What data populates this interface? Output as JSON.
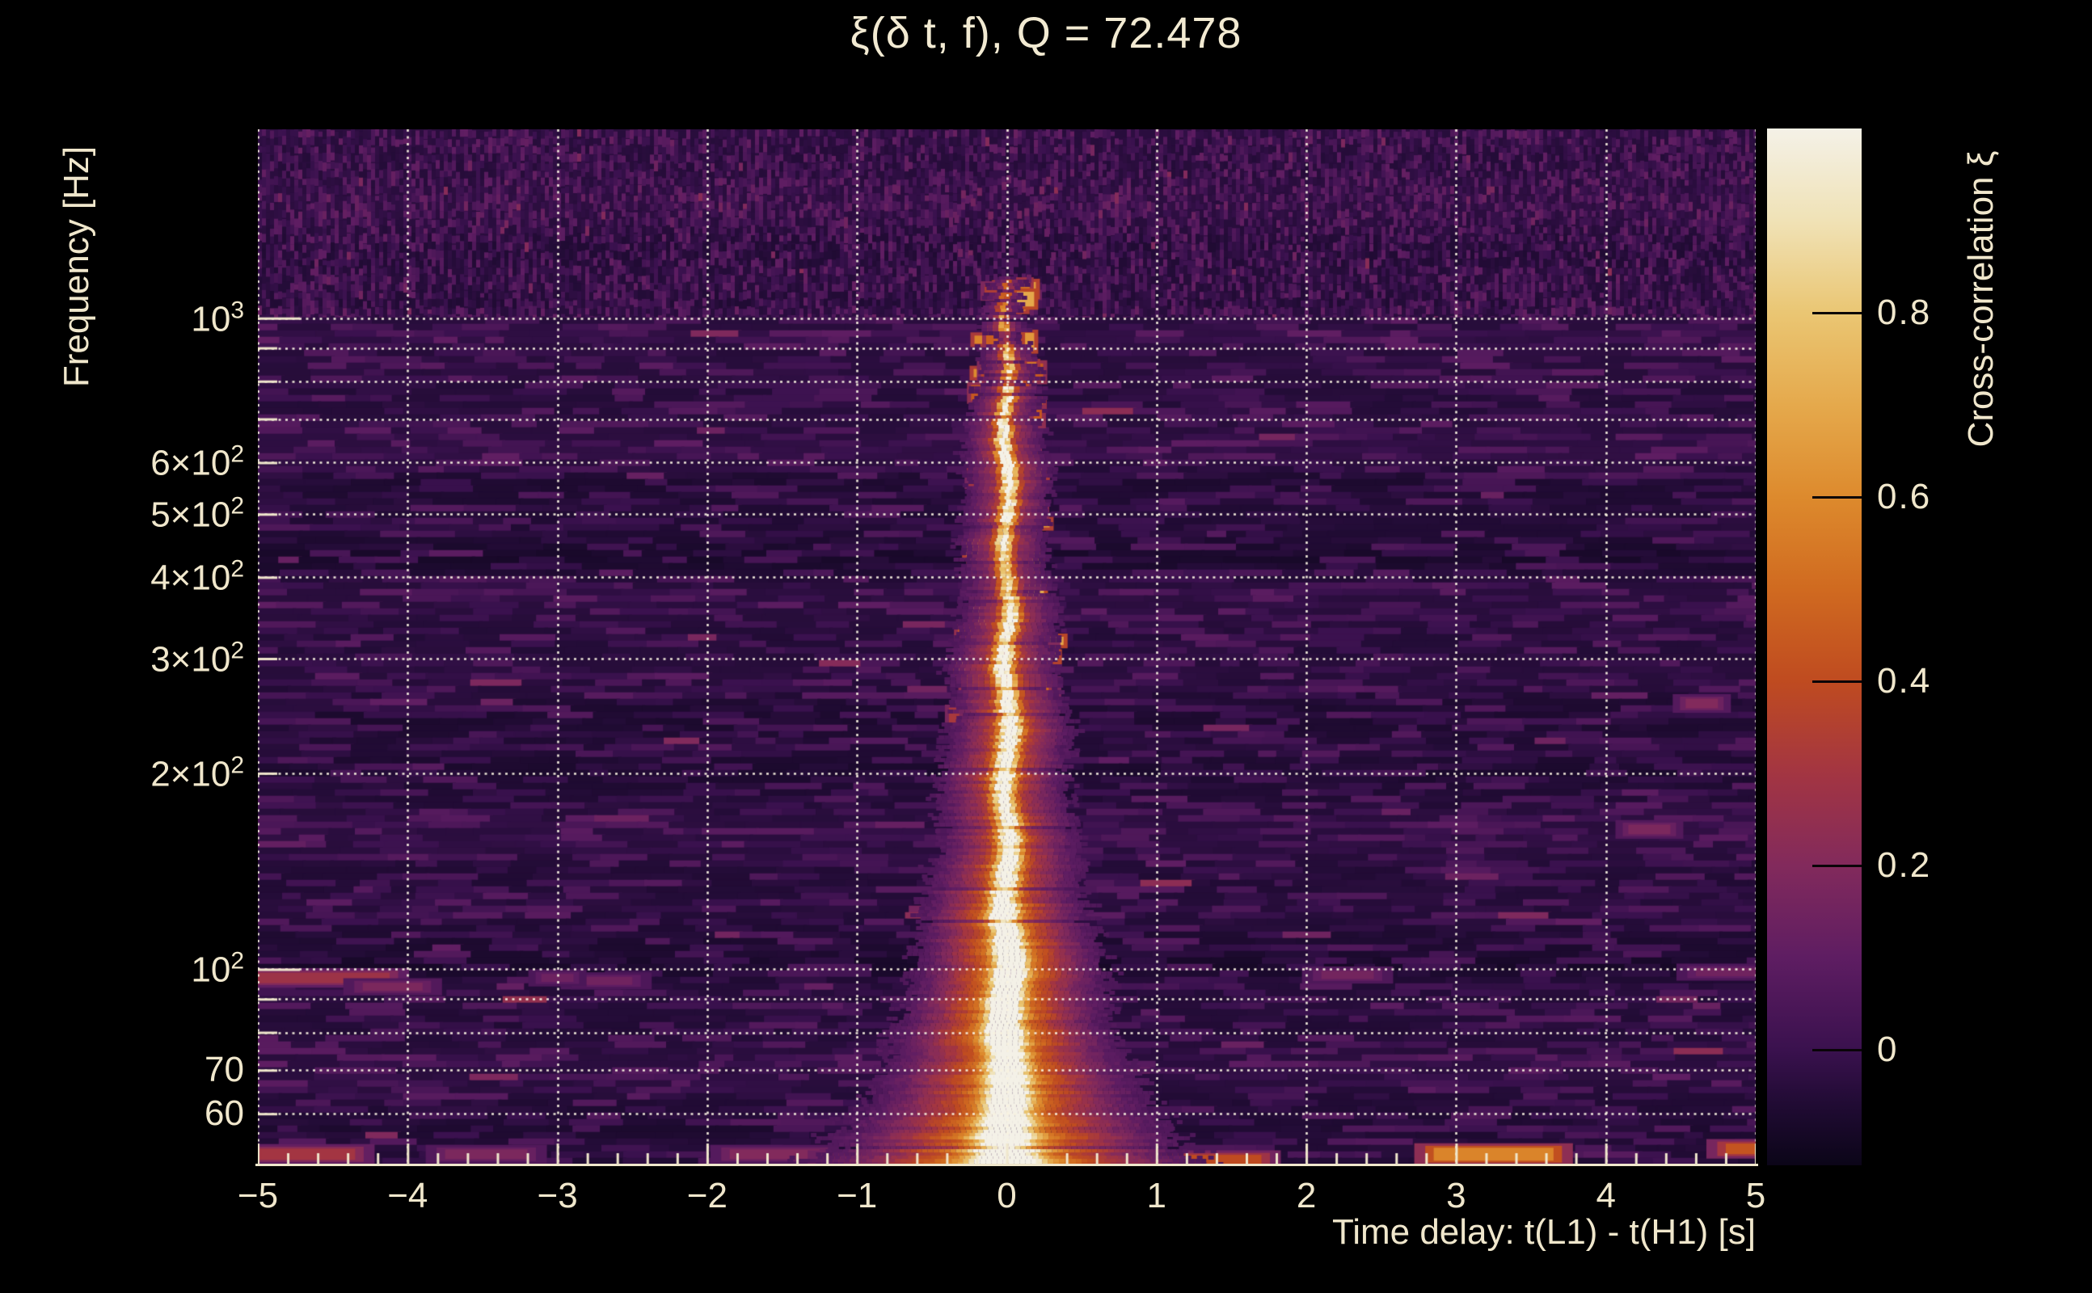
{
  "text_color": "#f0e7cc",
  "grid_color": "rgba(249,242,224,0.95)",
  "spine_color": "#f0e7cc",
  "background_color": "#000000",
  "chart_data": {
    "type": "heatmap",
    "title": "ξ(δ t, f), Q = 72.478",
    "q_value": 72.478,
    "xlabel": "Time delay: t(L1) - t(H1) [s]",
    "ylabel": "Frequency [Hz]",
    "colorbar_label": "Cross-correlation ξ",
    "xlim": [
      -5,
      5
    ],
    "ylim_hz": [
      50,
      1950
    ],
    "yscale": "log",
    "x_minor_step": 0.2,
    "x_ticks": [
      {
        "value": -5,
        "label": "−5"
      },
      {
        "value": -4,
        "label": "−4"
      },
      {
        "value": -3,
        "label": "−3"
      },
      {
        "value": -2,
        "label": "−2"
      },
      {
        "value": -1,
        "label": "−1"
      },
      {
        "value": 0,
        "label": "0"
      },
      {
        "value": 1,
        "label": "1"
      },
      {
        "value": 2,
        "label": "2"
      },
      {
        "value": 3,
        "label": "3"
      },
      {
        "value": 4,
        "label": "4"
      },
      {
        "value": 5,
        "label": "5"
      }
    ],
    "y_ticks": [
      {
        "value": 1000,
        "mant": "10",
        "exp": "3",
        "major": true
      },
      {
        "value": 600,
        "mant": "6×10",
        "exp": "2",
        "major": false
      },
      {
        "value": 500,
        "mant": "5×10",
        "exp": "2",
        "major": false
      },
      {
        "value": 400,
        "mant": "4×10",
        "exp": "2",
        "major": false
      },
      {
        "value": 300,
        "mant": "3×10",
        "exp": "2",
        "major": false
      },
      {
        "value": 200,
        "mant": "2×10",
        "exp": "2",
        "major": false
      },
      {
        "value": 100,
        "mant": "10",
        "exp": "2",
        "major": true
      },
      {
        "value": 70,
        "mant": "70",
        "exp": "",
        "major": false
      },
      {
        "value": 60,
        "mant": "60",
        "exp": "",
        "major": false
      }
    ],
    "grid_freqs_hz": [
      1000,
      900,
      800,
      700,
      600,
      500,
      400,
      300,
      200,
      100,
      90,
      80,
      70,
      60
    ],
    "colorbar": {
      "range": [
        -0.125,
        1.0
      ],
      "ticks": [
        {
          "value": 0.8,
          "label": "0.8"
        },
        {
          "value": 0.6,
          "label": "0.6"
        },
        {
          "value": 0.4,
          "label": "0.4"
        },
        {
          "value": 0.2,
          "label": "0.2"
        },
        {
          "value": 0.0,
          "label": "0"
        }
      ],
      "colormap": [
        [
          -0.125,
          "#0b0518"
        ],
        [
          -0.06,
          "#200b33"
        ],
        [
          0.0,
          "#3a114e"
        ],
        [
          0.1,
          "#5e1d62"
        ],
        [
          0.2,
          "#822a5c"
        ],
        [
          0.3,
          "#a33542"
        ],
        [
          0.4,
          "#bf4b20"
        ],
        [
          0.5,
          "#d06a20"
        ],
        [
          0.6,
          "#dd8a2d"
        ],
        [
          0.7,
          "#e5a94c"
        ],
        [
          0.8,
          "#eac673"
        ],
        [
          0.9,
          "#f0e2b6"
        ],
        [
          1.0,
          "#f4f1e7"
        ]
      ]
    },
    "signal": {
      "description": "Strong cross-correlation ridge at zero time delay spanning ~50–1400 Hz, white-hot below ~300 Hz, fragmenting into orange filaments above",
      "time_delay_s": 0.0,
      "freq_extent_hz": [
        50,
        1400
      ],
      "peak_xi": 1.0,
      "core_halfwidth_s": 0.04,
      "halo_halfwidth_s": 0.3
    },
    "noise": {
      "background_xi": 0.05,
      "speckle_max_xi": 0.25
    },
    "bands": [
      {
        "f": 1020,
        "d": 0.035,
        "h": 16
      },
      {
        "f": 950,
        "d": 0.04,
        "h": 22
      },
      {
        "f": 620,
        "d": 0.028,
        "h": 26
      },
      {
        "f": 430,
        "d": -0.02,
        "h": 30
      },
      {
        "f": 205,
        "d": -0.022,
        "h": 24
      },
      {
        "f": 101,
        "d": -0.025,
        "h": 16
      },
      {
        "f": 57,
        "d": -0.018,
        "h": 12
      }
    ],
    "features": [
      {
        "kind": "line",
        "f": 97,
        "t": [
          -5.0,
          -4.12
        ],
        "xi": 0.3,
        "h": 13
      },
      {
        "kind": "line",
        "f": 94,
        "t": [
          -4.3,
          -3.9
        ],
        "xi": 0.2,
        "h": 10
      },
      {
        "kind": "line",
        "f": 96,
        "t": [
          -2.85,
          -2.5
        ],
        "xi": 0.17,
        "h": 10
      },
      {
        "kind": "line",
        "f": 98,
        "t": [
          2.1,
          2.45
        ],
        "xi": 0.18,
        "h": 10
      },
      {
        "kind": "line",
        "f": 99,
        "t": [
          4.6,
          5.0
        ],
        "xi": 0.17,
        "h": 10
      },
      {
        "kind": "line",
        "f": 52,
        "t": [
          -5.0,
          -4.35
        ],
        "xi": 0.32,
        "h": 14
      },
      {
        "kind": "line",
        "f": 52,
        "t": [
          -3.75,
          -3.2
        ],
        "xi": 0.2,
        "h": 12
      },
      {
        "kind": "line",
        "f": 52,
        "t": [
          -1.85,
          -1.25
        ],
        "xi": 0.22,
        "h": 12
      },
      {
        "kind": "line",
        "f": 51,
        "t": [
          -1.2,
          -0.35
        ],
        "xi": 0.38,
        "h": 12
      },
      {
        "kind": "line",
        "f": 51,
        "t": [
          0.3,
          1.7
        ],
        "xi": 0.42,
        "h": 12
      },
      {
        "kind": "line",
        "f": 52,
        "t": [
          2.85,
          3.65
        ],
        "xi": 0.6,
        "h": 16
      },
      {
        "kind": "line",
        "f": 53,
        "t": [
          4.8,
          5.0
        ],
        "xi": 0.45,
        "h": 13
      },
      {
        "kind": "blob",
        "f": 256,
        "t": [
          4.64
        ],
        "xi": 0.22,
        "w": 40,
        "h": 12
      },
      {
        "kind": "blob",
        "f": 164,
        "t": [
          4.29
        ],
        "xi": 0.2,
        "w": 52,
        "h": 12
      },
      {
        "kind": "blob",
        "f": 97,
        "t": [
          -3.0
        ],
        "xi": 0.16,
        "w": 40,
        "h": 10
      }
    ]
  }
}
